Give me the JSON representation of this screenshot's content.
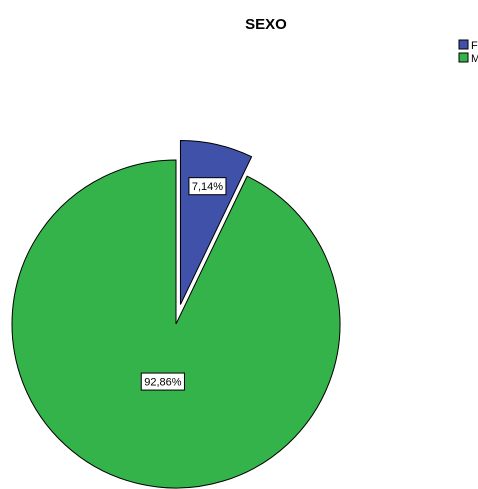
{
  "chart_data": {
    "type": "pie",
    "title": "SEXO",
    "slices": [
      {
        "label": "F",
        "value": 7.14,
        "display": "7,14%",
        "color": "#3f51a8",
        "exploded": true
      },
      {
        "label": "M",
        "value": 92.86,
        "display": "92,86%",
        "color": "#34b34a",
        "exploded": false
      }
    ],
    "legend_position": "top-right"
  }
}
